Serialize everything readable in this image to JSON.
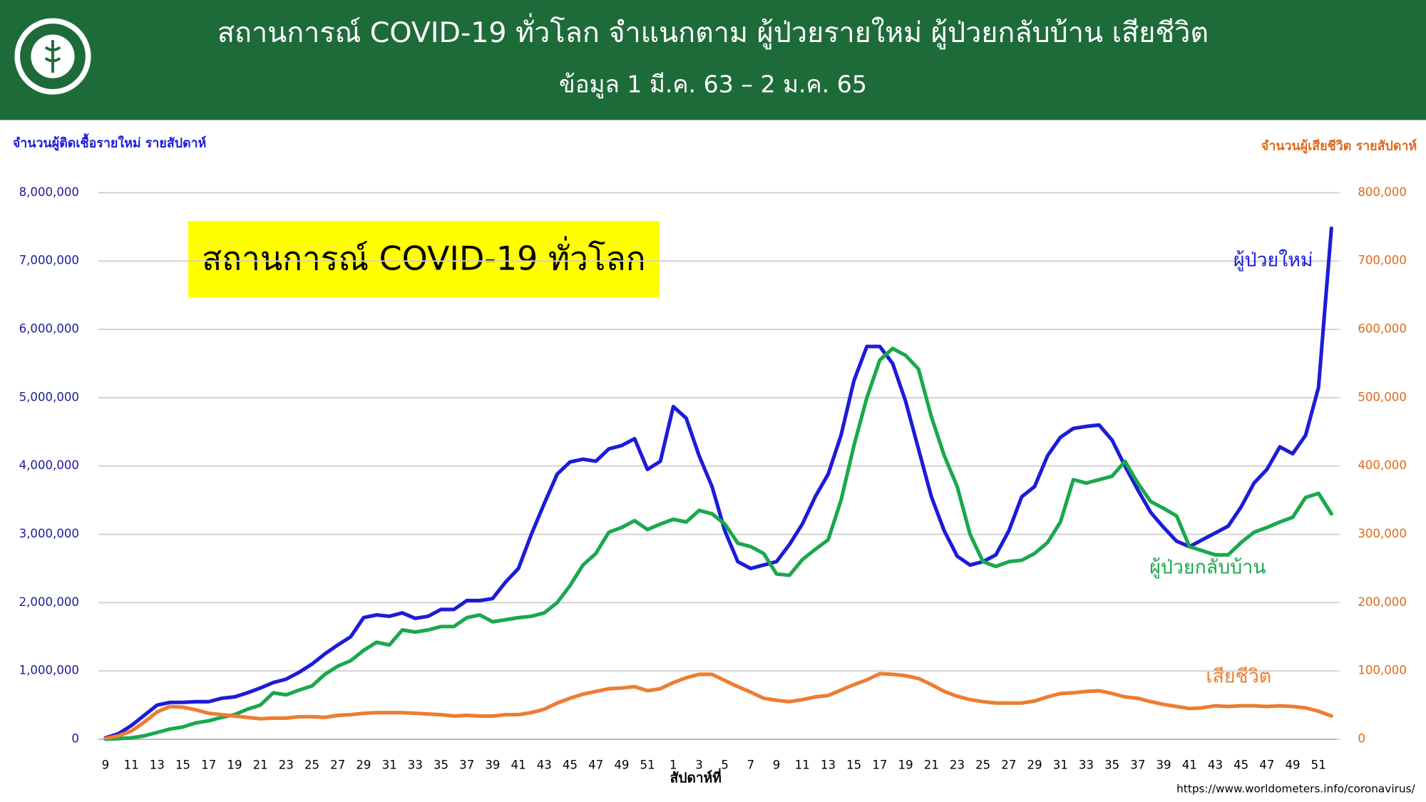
{
  "chart_data": {
    "type": "line",
    "title": "สถานการณ์ COVID-19 ทั่วโลก จำแนกตาม ผู้ป่วยรายใหม่ ผู้ป่วยกลับบ้าน เสียชีวิต",
    "subtitle": "ข้อมูล 1 มี.ค. 63 – 2 ม.ค. 65",
    "annotation": "สถานการณ์ COVID-19 ทั่วโลก",
    "y_label": "จำนวนผู้ติดเชื้อรายใหม่ รายสัปดาห์",
    "y2_label": "จำนวนผู้เสียชีวิต รายสัปดาห์",
    "x_label": "สัปดาห์ที่",
    "source": "https://www.worldometers.info/coronavirus/",
    "categories": [
      "9",
      null,
      "11",
      null,
      "13",
      null,
      "15",
      null,
      "17",
      null,
      "19",
      null,
      "21",
      null,
      "23",
      null,
      "25",
      null,
      "27",
      null,
      "29",
      null,
      "31",
      null,
      "33",
      null,
      "35",
      null,
      "37",
      null,
      "39",
      null,
      "41",
      null,
      "43",
      null,
      "45",
      null,
      "47",
      null,
      "49",
      null,
      "51",
      null,
      "1",
      null,
      "3",
      null,
      "5",
      null,
      "7",
      null,
      "9",
      null,
      "11",
      null,
      "13",
      null,
      "15",
      null,
      "17",
      null,
      "19",
      null,
      "21",
      null,
      "23",
      null,
      "25",
      null,
      "27",
      null,
      "29",
      null,
      "31",
      null,
      "33",
      null,
      "35",
      null,
      "37",
      null,
      "39",
      null,
      "41",
      null,
      "43",
      null,
      "45",
      null,
      "47",
      null,
      "49",
      null,
      "51",
      null
    ],
    "series": [
      {
        "name": "ผู้ป่วยใหม่",
        "color": "#1c1cd8",
        "values": [
          20000,
          80000,
          200000,
          350000,
          500000,
          540000,
          540000,
          550000,
          550000,
          600000,
          620000,
          680000,
          750000,
          830000,
          880000,
          980000,
          1100000,
          1250000,
          1380000,
          1500000,
          1780000,
          1820000,
          1800000,
          1850000,
          1770000,
          1800000,
          1900000,
          1900000,
          2030000,
          2030000,
          2060000,
          2300000,
          2500000,
          3000000,
          3450000,
          3880000,
          4060000,
          4100000,
          4070000,
          4250000,
          4300000,
          4400000,
          3950000,
          4070000,
          4870000,
          4700000,
          4150000,
          3700000,
          3050000,
          2600000,
          2500000,
          2550000,
          2600000,
          2850000,
          3150000,
          3550000,
          3880000,
          4450000,
          5250000,
          5750000,
          5750000,
          5500000,
          4950000,
          4250000,
          3550000,
          3050000,
          2680000,
          2550000,
          2600000,
          2700000,
          3050000,
          3550000,
          3700000,
          4150000,
          4420000,
          4550000,
          4580000,
          4600000,
          4380000,
          4000000,
          3650000,
          3320000,
          3100000,
          2900000,
          2820000,
          2920000,
          3020000,
          3120000,
          3400000,
          3750000,
          3950000,
          4280000,
          4180000,
          4450000,
          5150000,
          7480000
        ]
      },
      {
        "name": "ผู้ป่วยกลับบ้าน",
        "color": "#1aa84c",
        "values": [
          0,
          10000,
          20000,
          50000,
          100000,
          150000,
          180000,
          240000,
          270000,
          320000,
          360000,
          440000,
          500000,
          680000,
          650000,
          720000,
          780000,
          950000,
          1070000,
          1150000,
          1300000,
          1420000,
          1380000,
          1600000,
          1570000,
          1600000,
          1650000,
          1650000,
          1780000,
          1820000,
          1720000,
          1750000,
          1780000,
          1800000,
          1850000,
          2000000,
          2250000,
          2550000,
          2720000,
          3030000,
          3100000,
          3200000,
          3070000,
          3150000,
          3220000,
          3180000,
          3350000,
          3300000,
          3150000,
          2870000,
          2820000,
          2720000,
          2420000,
          2400000,
          2630000,
          2780000,
          2920000,
          3500000,
          4300000,
          5000000,
          5550000,
          5720000,
          5620000,
          5420000,
          4720000,
          4150000,
          3700000,
          3000000,
          2600000,
          2530000,
          2600000,
          2620000,
          2720000,
          2880000,
          3180000,
          3800000,
          3750000,
          3800000,
          3850000,
          4070000,
          3750000,
          3480000,
          3380000,
          3270000,
          2820000,
          2760000,
          2700000,
          2700000,
          2880000,
          3030000,
          3100000,
          3180000,
          3250000,
          3540000,
          3600000,
          3300000
        ]
      },
      {
        "name": "เสียชีวิต",
        "color": "#ed7d31",
        "axis": "y2",
        "values": [
          1000,
          5000,
          12000,
          25000,
          40000,
          48000,
          47000,
          43000,
          38000,
          36000,
          34000,
          32000,
          30000,
          31000,
          31000,
          33000,
          33000,
          32000,
          35000,
          36000,
          38000,
          39000,
          39000,
          39000,
          38000,
          37000,
          36000,
          34000,
          35000,
          34000,
          34000,
          36000,
          36000,
          39000,
          44000,
          53000,
          60000,
          66000,
          70000,
          74000,
          75000,
          77000,
          71000,
          74000,
          83000,
          90000,
          95000,
          95000,
          86000,
          77000,
          69000,
          60000,
          57000,
          55000,
          58000,
          62000,
          64000,
          72000,
          80000,
          87000,
          96000,
          95000,
          93000,
          89000,
          80000,
          70000,
          63000,
          58000,
          55000,
          53000,
          53000,
          53000,
          56000,
          62000,
          67000,
          68000,
          70000,
          71000,
          67000,
          62000,
          60000,
          55000,
          51000,
          48000,
          45000,
          46000,
          49000,
          48000,
          49000,
          49000,
          48000,
          49000,
          48000,
          46000,
          41000,
          34000
        ]
      }
    ],
    "ylim": [
      0,
      8000000
    ],
    "yticks": [
      0,
      {
        "value": 1000000,
        "label": "1,000,000"
      },
      {
        "value": 2000000,
        "label": "2,000,000"
      },
      {
        "value": 3000000,
        "label": "3,000,000"
      },
      {
        "value": 4000000,
        "label": "4,000,000"
      },
      {
        "value": 5000000,
        "label": "5,000,000"
      },
      {
        "value": 6000000,
        "label": "6,000,000"
      },
      {
        "value": 7000000,
        "label": "7,000,000"
      },
      {
        "value": 8000000,
        "label": "8,000,000"
      }
    ],
    "y2lim": [
      0,
      800000
    ],
    "y2ticks": [
      0,
      {
        "value": 100000,
        "label": "100,000"
      },
      {
        "value": 200000,
        "label": "200,000"
      },
      {
        "value": 300000,
        "label": "300,000"
      },
      {
        "value": 400000,
        "label": "400,000"
      },
      {
        "value": 500000,
        "label": "500,000"
      },
      {
        "value": 600000,
        "label": "600,000"
      },
      {
        "value": 700000,
        "label": "700,000"
      },
      {
        "value": 800000,
        "label": "800,000"
      }
    ],
    "grid": true
  }
}
